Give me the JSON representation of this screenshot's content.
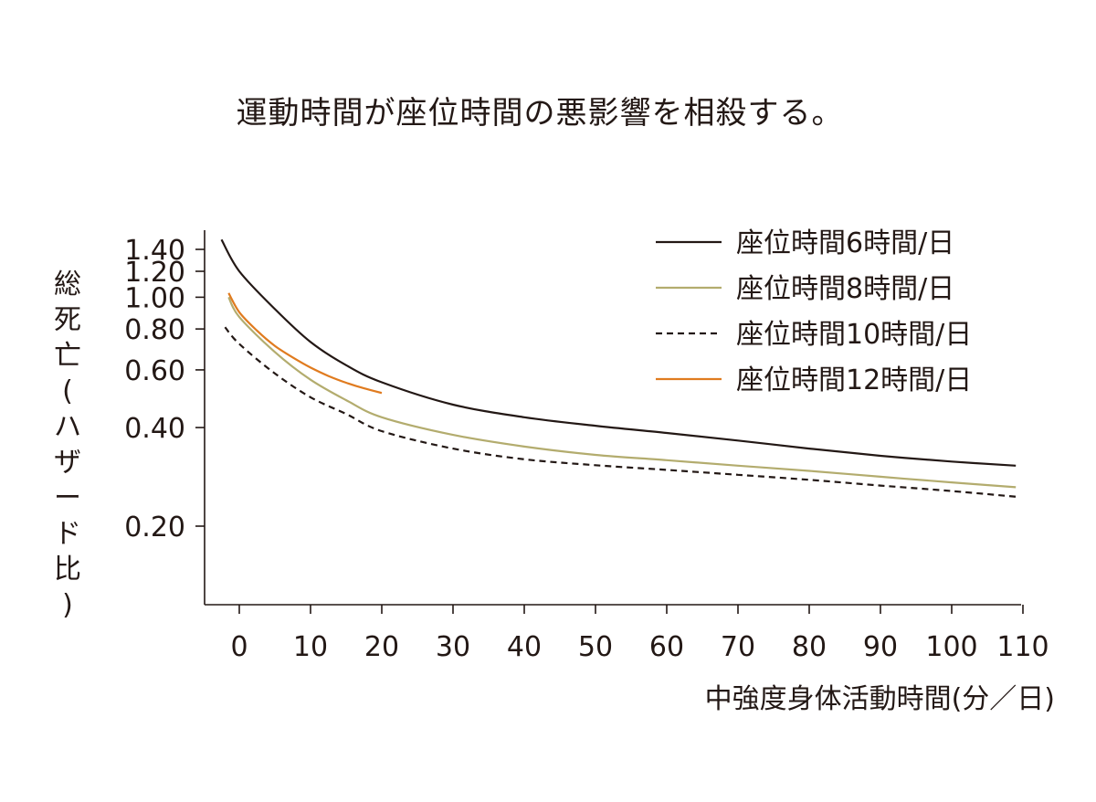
{
  "chart_data": {
    "type": "line",
    "title": "運動時間が座位時間の悪影響を相殺する。",
    "xlabel": "中強度身体活動時間(分／日)",
    "ylabel": "総死亡(ハザード比)",
    "xlim": [
      -3,
      110
    ],
    "ylim": [
      0.125,
      1.5
    ],
    "y_scale": "log",
    "x_ticks": [
      "0",
      "10",
      "20",
      "30",
      "40",
      "50",
      "60",
      "70",
      "80",
      "90",
      "100",
      "110"
    ],
    "y_ticks": [
      {
        "value": 1.4,
        "label": "1.40"
      },
      {
        "value": 1.2,
        "label": "1.20"
      },
      {
        "value": 1.0,
        "label": "1.00"
      },
      {
        "value": 0.8,
        "label": "0.80"
      },
      {
        "value": 0.6,
        "label": "0.60"
      },
      {
        "value": 0.4,
        "label": "0.40"
      },
      {
        "value": 0.2,
        "label": "0.20"
      }
    ],
    "grid": false,
    "legend_position": "top-right",
    "series": [
      {
        "name": "座位時間6時間/日",
        "color": "#231815",
        "dash": "solid",
        "points": [
          [
            -2.5,
            1.5
          ],
          [
            0,
            1.2
          ],
          [
            5,
            0.92
          ],
          [
            10,
            0.73
          ],
          [
            15,
            0.62
          ],
          [
            20,
            0.55
          ],
          [
            30,
            0.47
          ],
          [
            40,
            0.43
          ],
          [
            50,
            0.405
          ],
          [
            60,
            0.385
          ],
          [
            70,
            0.365
          ],
          [
            80,
            0.345
          ],
          [
            90,
            0.328
          ],
          [
            100,
            0.315
          ],
          [
            109,
            0.306
          ]
        ]
      },
      {
        "name": "座位時間8時間/日",
        "color": "#B3AC6E",
        "dash": "solid",
        "points": [
          [
            -1.5,
            1.0
          ],
          [
            0,
            0.87
          ],
          [
            5,
            0.68
          ],
          [
            10,
            0.56
          ],
          [
            15,
            0.485
          ],
          [
            20,
            0.43
          ],
          [
            30,
            0.38
          ],
          [
            40,
            0.35
          ],
          [
            50,
            0.33
          ],
          [
            60,
            0.318
          ],
          [
            70,
            0.306
          ],
          [
            80,
            0.295
          ],
          [
            90,
            0.283
          ],
          [
            100,
            0.272
          ],
          [
            109,
            0.263
          ]
        ]
      },
      {
        "name": "座位時間10時間/日",
        "color": "#231815",
        "dash": "dashed",
        "points": [
          [
            -2,
            0.81
          ],
          [
            0,
            0.72
          ],
          [
            5,
            0.585
          ],
          [
            10,
            0.495
          ],
          [
            15,
            0.44
          ],
          [
            20,
            0.39
          ],
          [
            30,
            0.345
          ],
          [
            40,
            0.32
          ],
          [
            50,
            0.307
          ],
          [
            60,
            0.297
          ],
          [
            70,
            0.287
          ],
          [
            80,
            0.277
          ],
          [
            90,
            0.266
          ],
          [
            100,
            0.256
          ],
          [
            109,
            0.246
          ]
        ]
      },
      {
        "name": "座位時間12時間/日",
        "color": "#E07B1F",
        "dash": "solid",
        "points": [
          [
            -1.5,
            1.03
          ],
          [
            0,
            0.9
          ],
          [
            2.5,
            0.79
          ],
          [
            5,
            0.71
          ],
          [
            7.5,
            0.655
          ],
          [
            10,
            0.61
          ],
          [
            12.5,
            0.575
          ],
          [
            15,
            0.548
          ],
          [
            17.5,
            0.527
          ],
          [
            20,
            0.51
          ]
        ]
      }
    ]
  }
}
